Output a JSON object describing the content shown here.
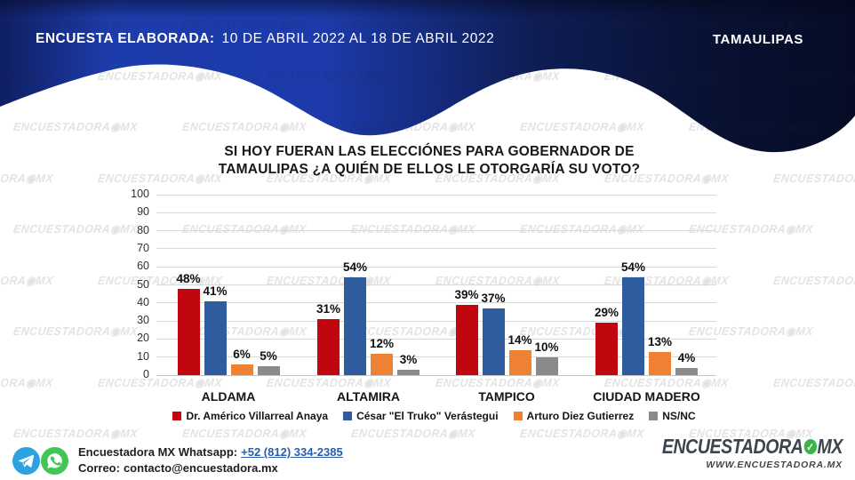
{
  "header": {
    "survey_label": "ENCUESTA ELABORADA:",
    "survey_dates": "10 DE ABRIL 2022 AL 18 DE ABRIL 2022",
    "region": "TAMAULIPAS"
  },
  "title": {
    "line1": "SI HOY FUERAN LAS ELECCIÓNES PARA GOBERNADOR DE",
    "line2": "TAMAULIPAS ¿A QUIÉN DE ELLOS LE OTORGARÍA SU VOTO?"
  },
  "chart_data": {
    "type": "bar",
    "categories": [
      "ALDAMA",
      "ALTAMIRA",
      "TAMPICO",
      "CIUDAD MADERO"
    ],
    "series": [
      {
        "name": "Dr. Américo Villarreal Anaya",
        "color": "#c00710",
        "values": [
          48,
          31,
          39,
          29
        ]
      },
      {
        "name": "César \"El Truko\" Verástegui",
        "color": "#2e5c9e",
        "values": [
          41,
          54,
          37,
          54
        ]
      },
      {
        "name": "Arturo Diez Gutierrez",
        "color": "#ee8134",
        "values": [
          6,
          12,
          14,
          13
        ]
      },
      {
        "name": "NS/NC",
        "color": "#8a8a8a",
        "values": [
          5,
          3,
          10,
          4
        ]
      }
    ],
    "ylim": [
      0,
      100
    ],
    "ytick_step": 10,
    "grid": true,
    "legend_position": "bottom",
    "value_label_format": "percent",
    "xlabel": "",
    "ylabel": ""
  },
  "footer": {
    "whatsapp_label": "Encuestadora MX Whatsapp:",
    "whatsapp_number": "+52 (812) 334-2385",
    "email_label": "Correo:",
    "email": "contacto@encuestadora.mx",
    "brand_left": "ENCUESTADORA",
    "brand_right": "MX",
    "brand_check": "✓",
    "brand_site": "WWW.ENCUESTADORA.MX"
  },
  "watermark": {
    "text_left": "ENCUESTADORA",
    "glyph": "◉",
    "text_right": "MX"
  },
  "colors": {
    "band_bright_blue": "#1d3cab",
    "band_dark_navy": "#060c26",
    "series_red": "#c00710",
    "series_blue": "#2e5c9e",
    "series_orange": "#ee8134",
    "series_gray": "#8a8a8a",
    "link_blue": "#2b5ca8",
    "brand_green": "#3bb54a",
    "telegram_blue": "#2ca3e0",
    "whatsapp_green": "#43c553",
    "gridline_gray": "#d9d9d9"
  }
}
